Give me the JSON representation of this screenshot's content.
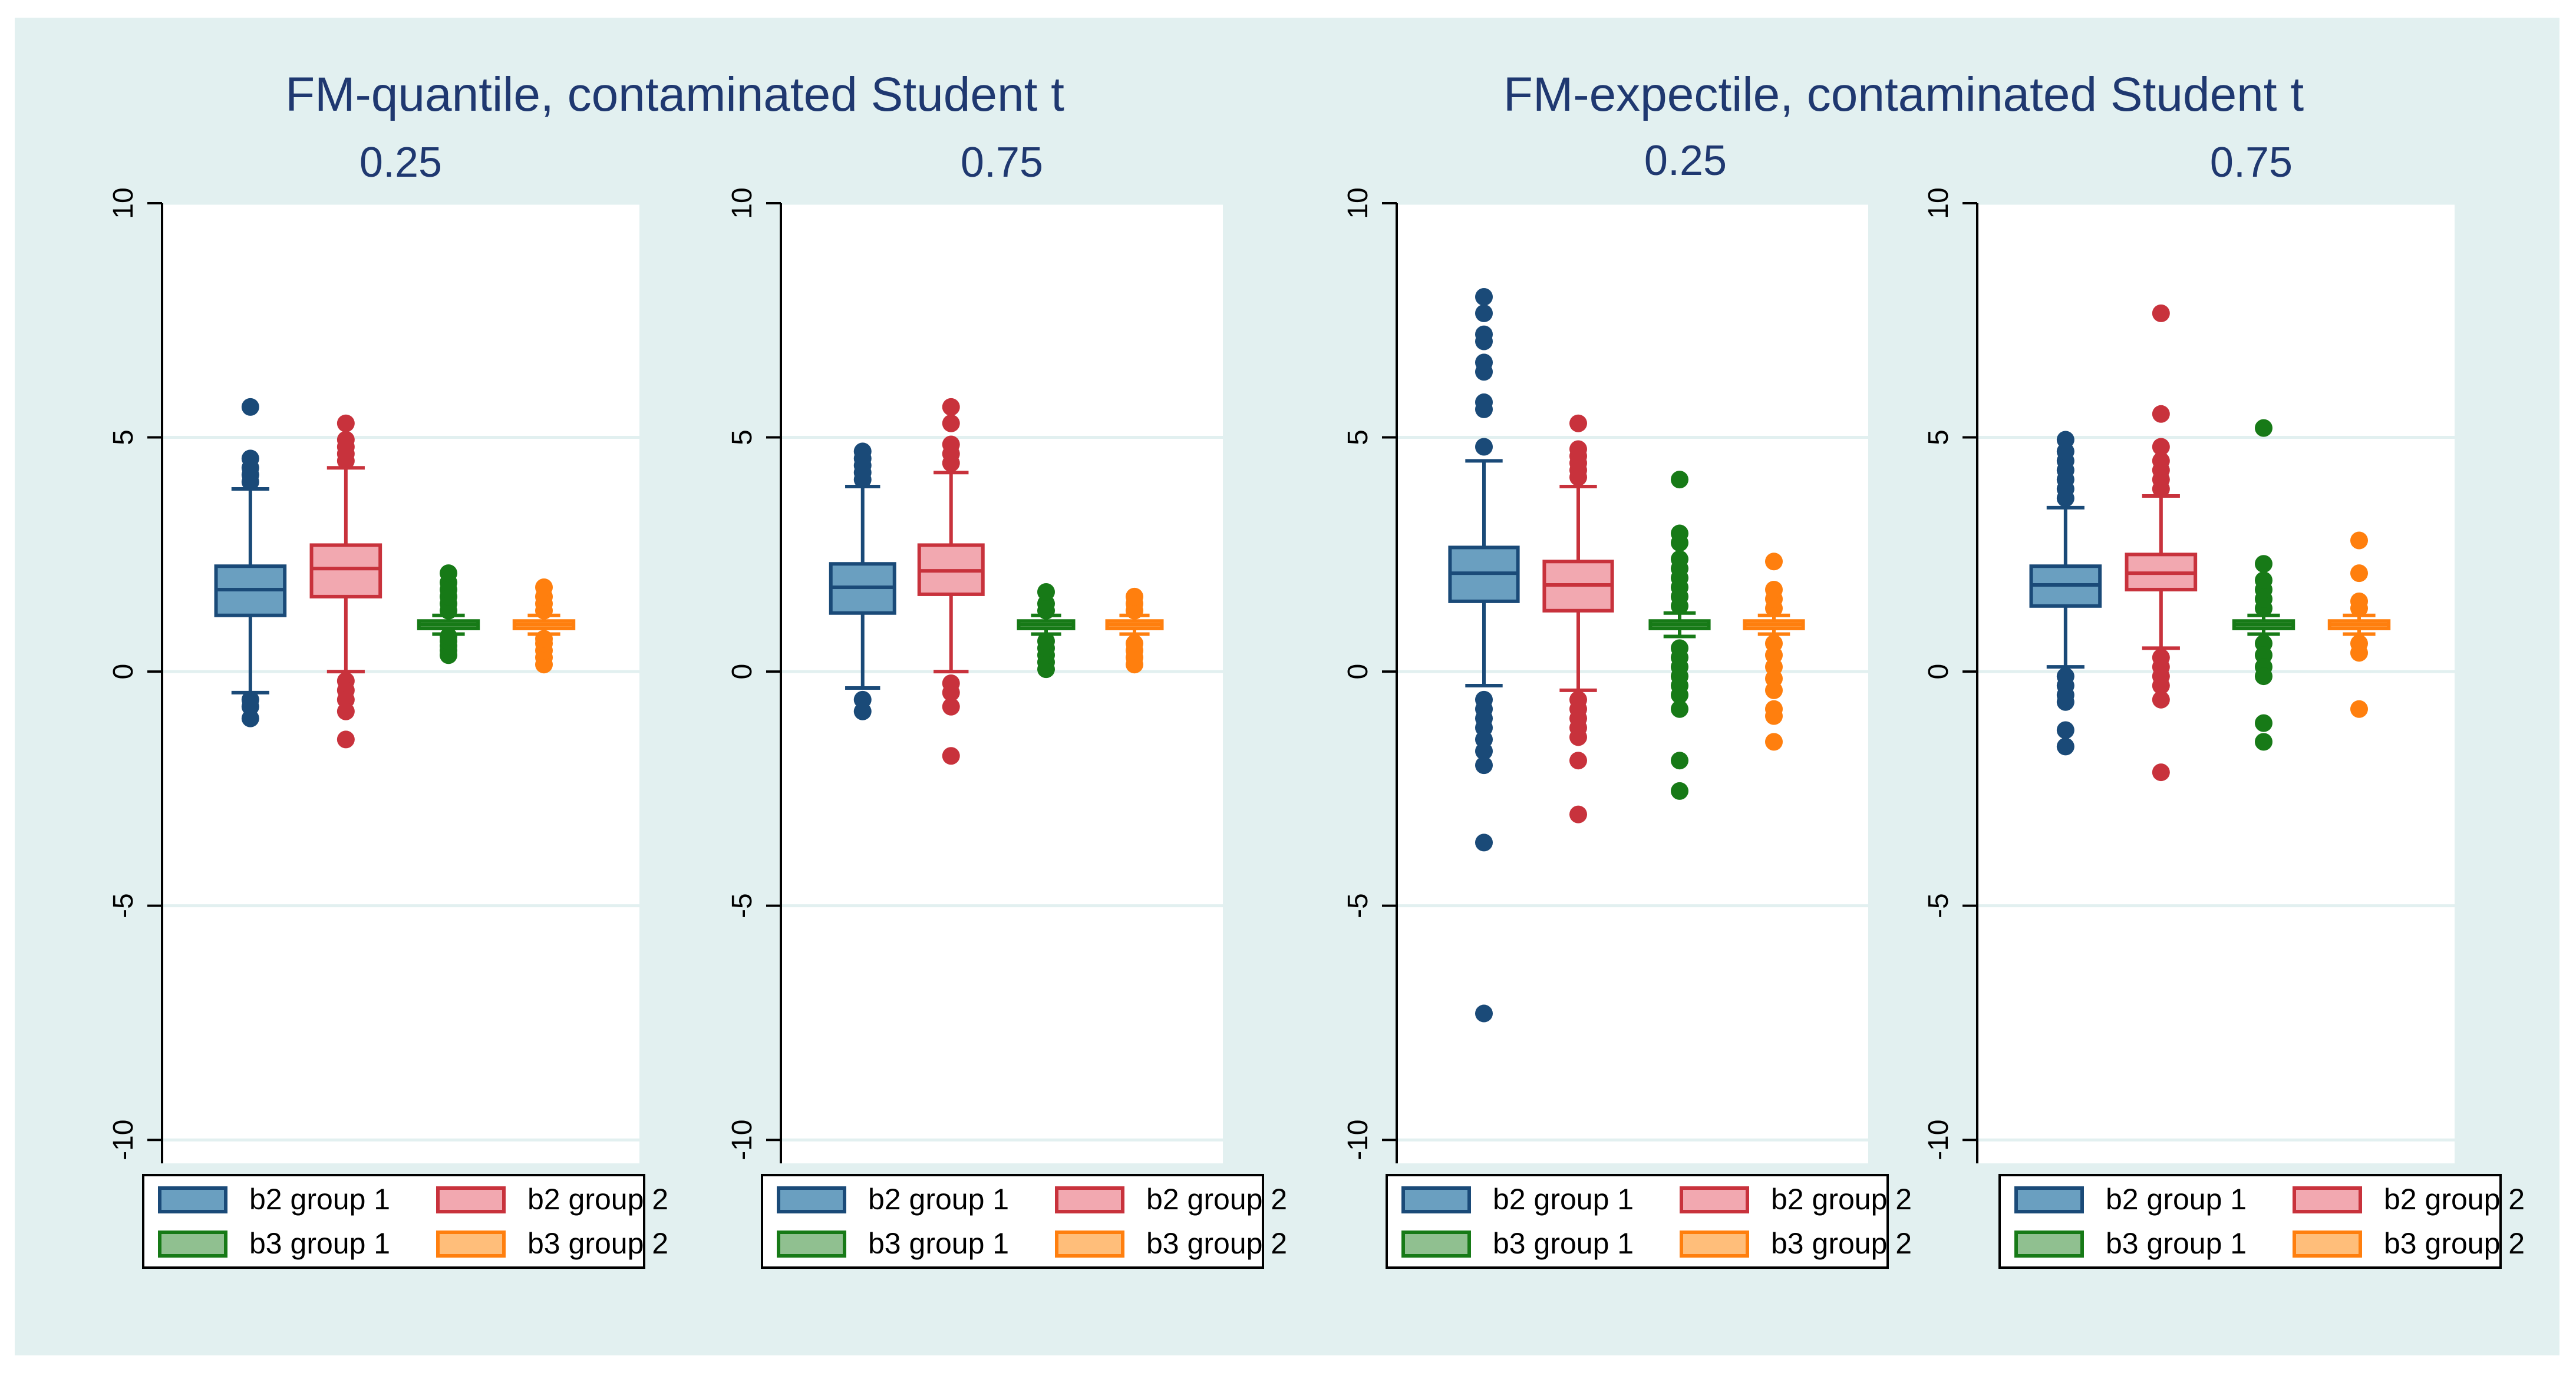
{
  "chart_data": [
    {
      "type": "boxplot",
      "title": "FM-quantile, contaminated Student t",
      "subtitle": "0.25",
      "ylim": [
        -10.5,
        10
      ],
      "yticks": [
        "10",
        "5",
        "0",
        "-5",
        "-10"
      ],
      "legend": [
        "b2 group 1",
        "b2 group 2",
        "b3 group 1",
        "b3 group 2"
      ],
      "series": [
        {
          "name": "b2 group 1",
          "q1": 1.2,
          "median": 1.75,
          "q3": 2.25,
          "whisker_low": -0.45,
          "whisker_high": 3.9,
          "outliers": [
            -0.6,
            -0.75,
            -1.0,
            4.05,
            4.2,
            4.35,
            4.55,
            5.65
          ]
        },
        {
          "name": "b2 group 2",
          "q1": 1.6,
          "median": 2.2,
          "q3": 2.7,
          "whisker_low": 0.0,
          "whisker_high": 4.35,
          "outliers": [
            -0.2,
            -0.4,
            -0.6,
            -0.85,
            -1.45,
            4.5,
            4.65,
            4.8,
            4.95,
            5.3
          ]
        },
        {
          "name": "b3 group 1",
          "q1": 0.92,
          "median": 1.0,
          "q3": 1.08,
          "whisker_low": 0.8,
          "whisker_high": 1.2,
          "outliers": [
            0.35,
            0.45,
            0.55,
            0.65,
            0.75,
            1.3,
            1.45,
            1.6,
            1.75,
            1.9,
            2.1
          ]
        },
        {
          "name": "b3 group 2",
          "q1": 0.92,
          "median": 1.0,
          "q3": 1.08,
          "whisker_low": 0.8,
          "whisker_high": 1.2,
          "outliers": [
            0.15,
            0.3,
            0.45,
            0.6,
            0.7,
            1.3,
            1.45,
            1.6,
            1.8
          ]
        }
      ]
    },
    {
      "type": "boxplot",
      "title": "",
      "subtitle": "0.75",
      "ylim": [
        -10.5,
        10
      ],
      "yticks": [
        "10",
        "5",
        "0",
        "-5",
        "-10"
      ],
      "legend": [
        "b2 group 1",
        "b2 group 2",
        "b3 group 1",
        "b3 group 2"
      ],
      "series": [
        {
          "name": "b2 group 1",
          "q1": 1.25,
          "median": 1.8,
          "q3": 2.3,
          "whisker_low": -0.35,
          "whisker_high": 3.95,
          "outliers": [
            -0.6,
            -0.85,
            4.1,
            4.25,
            4.4,
            4.55,
            4.7
          ]
        },
        {
          "name": "b2 group 2",
          "q1": 1.65,
          "median": 2.15,
          "q3": 2.7,
          "whisker_low": 0.0,
          "whisker_high": 4.25,
          "outliers": [
            -0.25,
            -0.45,
            -0.75,
            -1.8,
            4.45,
            4.65,
            4.85,
            5.3,
            5.65
          ]
        },
        {
          "name": "b3 group 1",
          "q1": 0.92,
          "median": 1.0,
          "q3": 1.08,
          "whisker_low": 0.8,
          "whisker_high": 1.2,
          "outliers": [
            0.05,
            0.2,
            0.35,
            0.5,
            0.65,
            1.3,
            1.45,
            1.7
          ]
        },
        {
          "name": "b3 group 2",
          "q1": 0.92,
          "median": 1.0,
          "q3": 1.08,
          "whisker_low": 0.8,
          "whisker_high": 1.2,
          "outliers": [
            0.15,
            0.3,
            0.45,
            0.6,
            1.3,
            1.45,
            1.6
          ]
        }
      ]
    },
    {
      "type": "boxplot",
      "title": "FM-expectile, contaminated Student t",
      "subtitle": "0.25",
      "ylim": [
        -10.5,
        10
      ],
      "yticks": [
        "10",
        "5",
        "0",
        "-5",
        "-10"
      ],
      "legend": [
        "b2 group 1",
        "b2 group 2",
        "b3 group 1",
        "b3 group 2"
      ],
      "series": [
        {
          "name": "b2 group 1",
          "q1": 1.5,
          "median": 2.1,
          "q3": 2.65,
          "whisker_low": -0.3,
          "whisker_high": 4.5,
          "outliers": [
            -0.6,
            -0.8,
            -1.0,
            -1.2,
            -1.45,
            -1.7,
            -2.0,
            -3.65,
            -7.3,
            4.8,
            5.6,
            5.75,
            6.4,
            6.6,
            7.05,
            7.2,
            7.65,
            8.0
          ]
        },
        {
          "name": "b2 group 2",
          "q1": 1.3,
          "median": 1.85,
          "q3": 2.35,
          "whisker_low": -0.4,
          "whisker_high": 3.95,
          "outliers": [
            -0.6,
            -0.8,
            -1.0,
            -1.2,
            -1.4,
            -1.9,
            -3.05,
            4.15,
            4.3,
            4.45,
            4.6,
            4.75,
            5.3
          ]
        },
        {
          "name": "b3 group 1",
          "q1": 0.92,
          "median": 1.0,
          "q3": 1.08,
          "whisker_low": 0.75,
          "whisker_high": 1.25,
          "outliers": [
            -0.1,
            -0.3,
            -0.5,
            -0.8,
            -1.9,
            -2.55,
            0.1,
            0.3,
            0.5,
            1.4,
            1.6,
            1.8,
            2.0,
            2.2,
            2.4,
            2.75,
            2.95,
            4.1
          ]
        },
        {
          "name": "b3 group 2",
          "q1": 0.92,
          "median": 1.0,
          "q3": 1.08,
          "whisker_low": 0.8,
          "whisker_high": 1.2,
          "outliers": [
            0.6,
            0.35,
            0.1,
            -0.15,
            -0.4,
            -0.8,
            -0.95,
            -1.5,
            1.35,
            1.55,
            1.75,
            2.35
          ]
        }
      ]
    },
    {
      "type": "boxplot",
      "title": "",
      "subtitle": "0.75",
      "ylim": [
        -10.5,
        10
      ],
      "yticks": [
        "10",
        "5",
        "0",
        "-5",
        "-10"
      ],
      "legend": [
        "b2 group 1",
        "b2 group 2",
        "b3 group 1",
        "b3 group 2"
      ],
      "series": [
        {
          "name": "b2 group 1",
          "q1": 1.4,
          "median": 1.85,
          "q3": 2.25,
          "whisker_low": 0.1,
          "whisker_high": 3.5,
          "outliers": [
            -0.1,
            -0.3,
            -0.5,
            -0.65,
            -1.25,
            -1.6,
            3.7,
            3.9,
            4.1,
            4.3,
            4.5,
            4.7,
            4.95
          ]
        },
        {
          "name": "b2 group 2",
          "q1": 1.75,
          "median": 2.1,
          "q3": 2.5,
          "whisker_low": 0.5,
          "whisker_high": 3.75,
          "outliers": [
            0.3,
            0.1,
            -0.1,
            -0.3,
            -0.6,
            -2.15,
            3.9,
            4.1,
            4.3,
            4.5,
            4.8,
            5.5,
            7.65
          ]
        },
        {
          "name": "b3 group 1",
          "q1": 0.92,
          "median": 1.0,
          "q3": 1.08,
          "whisker_low": 0.8,
          "whisker_high": 1.2,
          "outliers": [
            0.6,
            0.35,
            0.1,
            -0.1,
            -1.1,
            -1.5,
            1.35,
            1.55,
            1.75,
            1.95,
            2.3,
            5.2
          ]
        },
        {
          "name": "b3 group 2",
          "q1": 0.92,
          "median": 1.0,
          "q3": 1.08,
          "whisker_low": 0.8,
          "whisker_high": 1.2,
          "outliers": [
            0.4,
            0.6,
            -0.8,
            1.35,
            1.5,
            2.1,
            2.8
          ]
        }
      ]
    }
  ],
  "palette": {
    "background": "#e2f0f0",
    "plot": "#ffffff",
    "grid": "#e2f0f0",
    "title": "#1f3870",
    "axis": "#000000",
    "series_fill": [
      "#6a9fc0",
      "#f2a8b0",
      "#90c090",
      "#ffbe7a"
    ],
    "series_stroke": [
      "#1a4a78",
      "#c8323c",
      "#177a17",
      "#ff7f0e"
    ]
  }
}
